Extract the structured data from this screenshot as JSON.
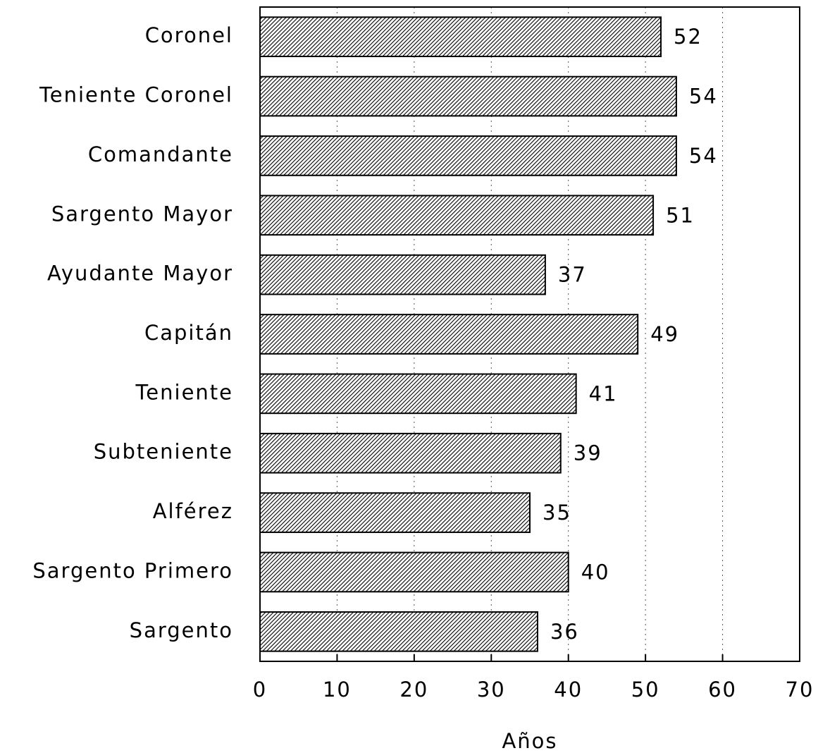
{
  "chart_data": {
    "type": "bar",
    "orientation": "horizontal",
    "categories": [
      "Coronel",
      "Teniente Coronel",
      "Comandante",
      "Sargento Mayor",
      "Ayudante Mayor",
      "Capitán",
      "Teniente",
      "Subteniente",
      "Alférez",
      "Sargento Primero",
      "Sargento"
    ],
    "values": [
      52,
      54,
      54,
      51,
      37,
      49,
      41,
      39,
      35,
      40,
      36
    ],
    "color": "#000000",
    "x_label": "Años",
    "xlim": [
      0,
      70
    ],
    "xticks": [
      0,
      10,
      20,
      30,
      40,
      50,
      60,
      70
    ],
    "grid": true
  }
}
